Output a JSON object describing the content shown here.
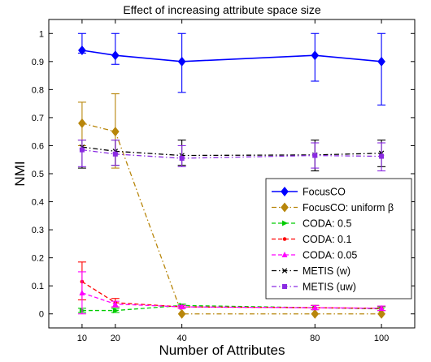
{
  "chart_data": {
    "type": "line",
    "title": "Effect of increasing attribute space size",
    "xlabel": "Number of Attributes",
    "ylabel": "NMI",
    "xlim": [
      0,
      110
    ],
    "ylim": [
      -0.05,
      1.05
    ],
    "x": [
      10,
      20,
      40,
      80,
      100
    ],
    "xticks": [
      "10",
      "20",
      "40",
      "80",
      "100"
    ],
    "yticks": [
      "0",
      "0.1",
      "0.2",
      "0.3",
      "0.4",
      "0.5",
      "0.6",
      "0.7",
      "0.8",
      "0.9",
      "1"
    ],
    "grid": false,
    "legend_position": "right",
    "series": [
      {
        "name": "FocusCO",
        "color": "#0000ff",
        "marker": "diamond",
        "dash": "solid",
        "values": [
          0.94,
          0.922,
          0.9,
          0.922,
          0.9
        ],
        "err_low": [
          0.93,
          0.89,
          0.79,
          0.83,
          0.745
        ],
        "err_high": [
          1.0,
          1.0,
          1.0,
          1.0,
          1.0
        ]
      },
      {
        "name": "FocusCO: uniform β",
        "color": "#b8860b",
        "marker": "diamond",
        "dash": "dashdot",
        "values": [
          0.68,
          0.65,
          0.0,
          0.0,
          0.0
        ],
        "err_low": [
          0.6,
          0.52,
          0.0,
          0.0,
          0.0
        ],
        "err_high": [
          0.755,
          0.785,
          0.0,
          0.0,
          0.0
        ]
      },
      {
        "name": "CODA: 0.5",
        "color": "#00cc00",
        "marker": "triangle-right",
        "dash": "dashed",
        "values": [
          0.012,
          0.012,
          0.03,
          0.022,
          0.018
        ],
        "err_low": [
          0.005,
          0.005,
          0.025,
          0.015,
          0.012
        ],
        "err_high": [
          0.02,
          0.02,
          0.035,
          0.03,
          0.025
        ]
      },
      {
        "name": "CODA: 0.1",
        "color": "#ff0000",
        "marker": "dot",
        "dash": "dashed",
        "values": [
          0.115,
          0.04,
          0.025,
          0.022,
          0.02
        ],
        "err_low": [
          0.05,
          0.025,
          0.02,
          0.015,
          0.012
        ],
        "err_high": [
          0.185,
          0.055,
          0.03,
          0.03,
          0.028
        ]
      },
      {
        "name": "CODA: 0.05",
        "color": "#ff00ff",
        "marker": "triangle-up",
        "dash": "dashed",
        "values": [
          0.075,
          0.035,
          0.025,
          0.022,
          0.02
        ],
        "err_low": [
          0.0,
          0.025,
          0.02,
          0.015,
          0.012
        ],
        "err_high": [
          0.15,
          0.045,
          0.03,
          0.03,
          0.028
        ]
      },
      {
        "name": "METIS (w)",
        "color": "#000000",
        "marker": "x",
        "dash": "dashdot",
        "values": [
          0.595,
          0.58,
          0.565,
          0.567,
          0.573
        ],
        "err_low": [
          0.52,
          0.53,
          0.53,
          0.51,
          0.525
        ],
        "err_high": [
          0.62,
          0.62,
          0.62,
          0.62,
          0.62
        ]
      },
      {
        "name": "METIS (uw)",
        "color": "#8a2be2",
        "marker": "square",
        "dash": "dashdot",
        "values": [
          0.585,
          0.57,
          0.555,
          0.565,
          0.562
        ],
        "err_low": [
          0.525,
          0.53,
          0.525,
          0.52,
          0.51
        ],
        "err_high": [
          0.62,
          0.62,
          0.6,
          0.61,
          0.61
        ]
      }
    ]
  }
}
